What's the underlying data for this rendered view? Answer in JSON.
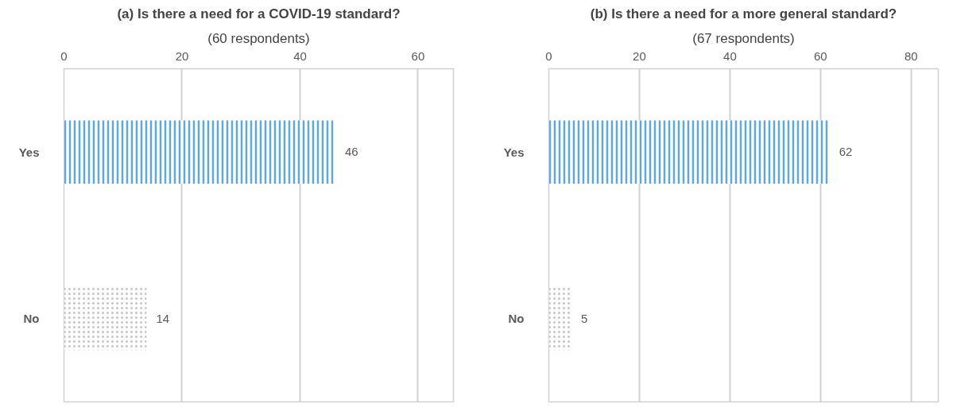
{
  "chart_data": [
    {
      "type": "bar",
      "orientation": "horizontal",
      "title": "(a) Is there a need for a COVID-19 standard?",
      "subtitle": "(60 respondents)",
      "categories": [
        "Yes",
        "No"
      ],
      "values": [
        46,
        14
      ],
      "colors": [
        "#5ea8e0",
        "#c4c4c4"
      ],
      "xlim": [
        0,
        66
      ],
      "xticks": [
        0,
        20,
        40,
        60
      ],
      "grid": "x",
      "data_labels": true
    },
    {
      "type": "bar",
      "orientation": "horizontal",
      "title": "(b) Is there a need for a more general standard?",
      "subtitle": "(67 respondents)",
      "categories": [
        "Yes",
        "No"
      ],
      "values": [
        62,
        5
      ],
      "colors": [
        "#5ea8e0",
        "#c4c4c4"
      ],
      "xlim": [
        0,
        86
      ],
      "xticks": [
        0,
        20,
        40,
        60,
        80
      ],
      "grid": "x",
      "data_labels": true
    }
  ]
}
